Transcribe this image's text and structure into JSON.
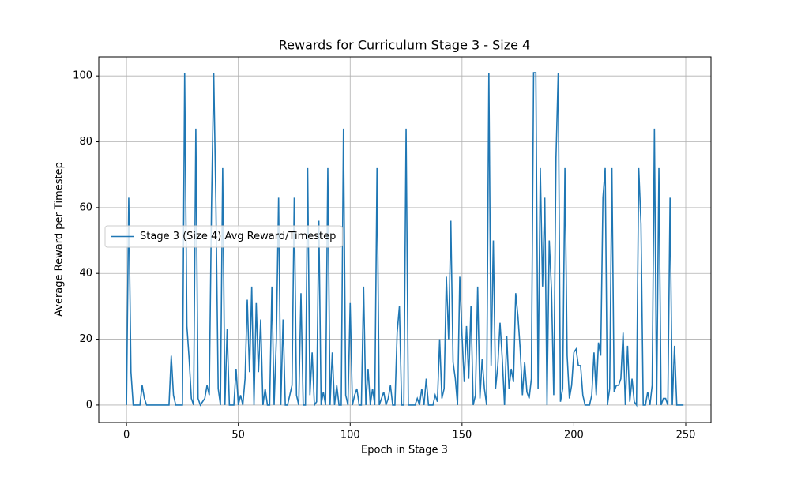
{
  "chart_data": {
    "type": "line",
    "title": "Rewards for Curriculum Stage 3 - Size 4",
    "x_label": "Epoch in Stage 3",
    "y_label": "Average Reward per Timestep",
    "x": [
      0,
      1,
      2,
      3,
      4,
      5,
      6,
      7,
      8,
      9,
      10,
      11,
      12,
      13,
      14,
      15,
      16,
      17,
      18,
      19,
      20,
      21,
      22,
      23,
      24,
      25,
      26,
      27,
      28,
      29,
      30,
      31,
      32,
      33,
      34,
      35,
      36,
      37,
      38,
      39,
      40,
      41,
      42,
      43,
      44,
      45,
      46,
      47,
      48,
      49,
      50,
      51,
      52,
      53,
      54,
      55,
      56,
      57,
      58,
      59,
      60,
      61,
      62,
      63,
      64,
      65,
      66,
      67,
      68,
      69,
      70,
      71,
      72,
      73,
      74,
      75,
      76,
      77,
      78,
      79,
      80,
      81,
      82,
      83,
      84,
      85,
      86,
      87,
      88,
      89,
      90,
      91,
      92,
      93,
      94,
      95,
      96,
      97,
      98,
      99,
      100,
      101,
      102,
      103,
      104,
      105,
      106,
      107,
      108,
      109,
      110,
      111,
      112,
      113,
      114,
      115,
      116,
      117,
      118,
      119,
      120,
      121,
      122,
      123,
      124,
      125,
      126,
      127,
      128,
      129,
      130,
      131,
      132,
      133,
      134,
      135,
      136,
      137,
      138,
      139,
      140,
      141,
      142,
      143,
      144,
      145,
      146,
      147,
      148,
      149,
      150,
      151,
      152,
      153,
      154,
      155,
      156,
      157,
      158,
      159,
      160,
      161,
      162,
      163,
      164,
      165,
      166,
      167,
      168,
      169,
      170,
      171,
      172,
      173,
      174,
      175,
      176,
      177,
      178,
      179,
      180,
      181,
      182,
      183,
      184,
      185,
      186,
      187,
      188,
      189,
      190,
      191,
      192,
      193,
      194,
      195,
      196,
      197,
      198,
      199,
      200,
      201,
      202,
      203,
      204,
      205,
      206,
      207,
      208,
      209,
      210,
      211,
      212,
      213,
      214,
      215,
      216,
      217,
      218,
      219,
      220,
      221,
      222,
      223,
      224,
      225,
      226,
      227,
      228,
      229,
      230,
      231,
      232,
      233,
      234,
      235,
      236,
      237,
      238,
      239,
      240,
      241,
      242,
      243,
      244,
      245,
      246,
      247,
      248,
      249
    ],
    "series": [
      {
        "name": "Stage 3 (Size 4) Avg Reward/Timestep",
        "color": "#1f77b4",
        "values": [
          0,
          63,
          10,
          0,
          0,
          0,
          0,
          6,
          2,
          0,
          0,
          0,
          0,
          0,
          0,
          0,
          0,
          0,
          0,
          0,
          15,
          3,
          0,
          0,
          0,
          0,
          101,
          24,
          14,
          2,
          0,
          84,
          2,
          0,
          1,
          2,
          6,
          3,
          60,
          101,
          60,
          5,
          0,
          72,
          0,
          23,
          0,
          0,
          0,
          11,
          0,
          3,
          0,
          8,
          32,
          10,
          36,
          0,
          31,
          10,
          26,
          0,
          5,
          0,
          0,
          36,
          0,
          20,
          63,
          0,
          26,
          0,
          0,
          3,
          6,
          63,
          3,
          0,
          34,
          0,
          0,
          72,
          3,
          16,
          0,
          1,
          56,
          0,
          4,
          0,
          72,
          0,
          16,
          0,
          6,
          0,
          0,
          84,
          3,
          0,
          31,
          0,
          3,
          5,
          0,
          0,
          36,
          0,
          11,
          0,
          5,
          0,
          72,
          0,
          2,
          4,
          0,
          2,
          6,
          0,
          0,
          22,
          30,
          0,
          0,
          84,
          0,
          0,
          0,
          0,
          2,
          0,
          5,
          0,
          8,
          0,
          0,
          0,
          3,
          1,
          20,
          2,
          5,
          39,
          20,
          56,
          13,
          8,
          0,
          39,
          21,
          7,
          24,
          8,
          30,
          0,
          3,
          36,
          2,
          14,
          5,
          0,
          101,
          12,
          50,
          5,
          12,
          25,
          14,
          0,
          21,
          5,
          11,
          7,
          34,
          27,
          17,
          3,
          13,
          4,
          2,
          8,
          101,
          101,
          5,
          72,
          36,
          63,
          0,
          50,
          35,
          3,
          75,
          101,
          1,
          5,
          72,
          15,
          2,
          6,
          16,
          17,
          12,
          12,
          3,
          0,
          0,
          0,
          3,
          16,
          3,
          19,
          15,
          63,
          72,
          0,
          5,
          72,
          4,
          6,
          6,
          8,
          22,
          0,
          18,
          1,
          8,
          1,
          0,
          72,
          55,
          0,
          0,
          4,
          0,
          6,
          84,
          0,
          72,
          0,
          2,
          2,
          0,
          63,
          0,
          18,
          0,
          0,
          0,
          0
        ]
      }
    ],
    "xlim": [
      -12.4,
      261.3
    ],
    "ylim": [
      -5.3,
      105.8
    ],
    "xticks": [
      0,
      50,
      100,
      150,
      200,
      250
    ],
    "yticks": [
      0,
      20,
      40,
      60,
      80,
      100
    ],
    "grid": true,
    "legend": "center left"
  }
}
